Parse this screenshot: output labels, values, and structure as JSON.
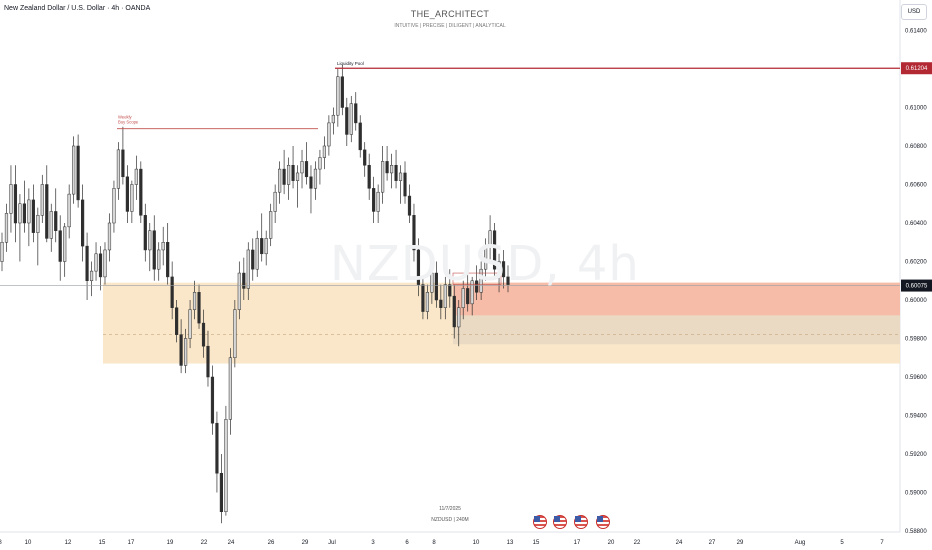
{
  "header": {
    "title": "New Zealand Dollar / U.S. Dollar · 4h · OANDA",
    "brand_name": "THE_ARCHITECT",
    "brand_tagline": "INTUITIVE | PRECISE | DILIGENT | ANALYTICAL",
    "currency": "USD"
  },
  "watermark": "NZDUSD, 4h",
  "footer": {
    "date": "11/7/2025",
    "symbol_interval": "NZDUSD | 240M",
    "event_icons": [
      "us-flag-icon",
      "us-flag-icon",
      "us-flag-icon",
      "us-flag-icon"
    ]
  },
  "chart_data": {
    "type": "candlestick",
    "symbol": "NZDUSD",
    "interval": "4h",
    "ylim": [
      0.588,
      0.614
    ],
    "y_ticks": [
      "0.61400",
      "0.61200",
      "0.61000",
      "0.60800",
      "0.60600",
      "0.60400",
      "0.60200",
      "0.60000",
      "0.59800",
      "0.59600",
      "0.59400",
      "0.59200",
      "0.59000",
      "0.58800"
    ],
    "x_ticks": [
      "8",
      "10",
      "12",
      "15",
      "17",
      "19",
      "22",
      "24",
      "26",
      "29",
      "Jul",
      "3",
      "6",
      "8",
      "10",
      "13",
      "15",
      "17",
      "20",
      "22",
      "24",
      "27",
      "29",
      "Aug",
      "5",
      "7"
    ],
    "price_labels": [
      {
        "value": 0.61204,
        "text": "0.61204",
        "color": "#b22833"
      },
      {
        "value": 0.60075,
        "text": "0.60075",
        "color": "#131722"
      }
    ],
    "annotations": [
      {
        "text": "Liquidity Pool",
        "price": 0.61204
      },
      {
        "text": "Weekly Buy Scope",
        "price": 0.6089
      }
    ],
    "zones": [
      {
        "name": "demand-zone",
        "top": 0.6009,
        "bottom": 0.5967,
        "color": "#f9e4c3"
      },
      {
        "name": "supply-zone",
        "top": 0.6009,
        "bottom": 0.5992,
        "color": "#f5b7a3"
      },
      {
        "name": "inner-zone",
        "top": 0.5992,
        "bottom": 0.5977,
        "color": "#e8d8c2"
      }
    ],
    "candles": [
      [
        0.602,
        0.6035,
        0.6015,
        0.603
      ],
      [
        0.603,
        0.605,
        0.6025,
        0.6045
      ],
      [
        0.6045,
        0.607,
        0.6035,
        0.606
      ],
      [
        0.606,
        0.607,
        0.603,
        0.604
      ],
      [
        0.604,
        0.6055,
        0.602,
        0.605
      ],
      [
        0.605,
        0.6062,
        0.6035,
        0.604
      ],
      [
        0.604,
        0.6058,
        0.6028,
        0.6052
      ],
      [
        0.6052,
        0.606,
        0.603,
        0.6035
      ],
      [
        0.6035,
        0.6048,
        0.6018,
        0.6044
      ],
      [
        0.6044,
        0.6065,
        0.604,
        0.606
      ],
      [
        0.606,
        0.607,
        0.603,
        0.6032
      ],
      [
        0.6032,
        0.605,
        0.6025,
        0.6046
      ],
      [
        0.6046,
        0.6058,
        0.603,
        0.6036
      ],
      [
        0.6036,
        0.6044,
        0.601,
        0.602
      ],
      [
        0.602,
        0.604,
        0.6012,
        0.6038
      ],
      [
        0.6038,
        0.606,
        0.6032,
        0.6055
      ],
      [
        0.6055,
        0.6085,
        0.605,
        0.608
      ],
      [
        0.608,
        0.6086,
        0.6048,
        0.6052
      ],
      [
        0.6052,
        0.606,
        0.602,
        0.6028
      ],
      [
        0.6028,
        0.6035,
        0.6,
        0.601
      ],
      [
        0.601,
        0.602,
        0.6002,
        0.6015
      ],
      [
        0.6015,
        0.603,
        0.601,
        0.6024
      ],
      [
        0.6024,
        0.6028,
        0.6005,
        0.6012
      ],
      [
        0.6012,
        0.603,
        0.6008,
        0.6026
      ],
      [
        0.6026,
        0.6045,
        0.602,
        0.604
      ],
      [
        0.604,
        0.6062,
        0.6035,
        0.6058
      ],
      [
        0.6058,
        0.6082,
        0.6052,
        0.6078
      ],
      [
        0.6078,
        0.609,
        0.606,
        0.6064
      ],
      [
        0.6064,
        0.607,
        0.604,
        0.6046
      ],
      [
        0.6046,
        0.6062,
        0.604,
        0.606
      ],
      [
        0.606,
        0.6075,
        0.6052,
        0.6068
      ],
      [
        0.6068,
        0.6072,
        0.604,
        0.6044
      ],
      [
        0.6044,
        0.605,
        0.602,
        0.6026
      ],
      [
        0.6026,
        0.604,
        0.6015,
        0.6036
      ],
      [
        0.6036,
        0.6044,
        0.601,
        0.6016
      ],
      [
        0.6016,
        0.603,
        0.601,
        0.6026
      ],
      [
        0.6026,
        0.6038,
        0.6018,
        0.603
      ],
      [
        0.603,
        0.604,
        0.6008,
        0.6012
      ],
      [
        0.6012,
        0.602,
        0.599,
        0.5996
      ],
      [
        0.5996,
        0.6,
        0.5978,
        0.5982
      ],
      [
        0.5982,
        0.599,
        0.5962,
        0.5966
      ],
      [
        0.5966,
        0.5985,
        0.5962,
        0.598
      ],
      [
        0.598,
        0.6,
        0.5975,
        0.5995
      ],
      [
        0.5995,
        0.601,
        0.599,
        0.6004
      ],
      [
        0.6004,
        0.6008,
        0.5985,
        0.5988
      ],
      [
        0.5988,
        0.5995,
        0.597,
        0.5976
      ],
      [
        0.5976,
        0.5984,
        0.5955,
        0.596
      ],
      [
        0.596,
        0.5966,
        0.593,
        0.5936
      ],
      [
        0.5936,
        0.5942,
        0.59,
        0.591
      ],
      [
        0.591,
        0.592,
        0.5884,
        0.589
      ],
      [
        0.589,
        0.5945,
        0.5888,
        0.5938
      ],
      [
        0.5938,
        0.5975,
        0.593,
        0.597
      ],
      [
        0.597,
        0.6,
        0.5965,
        0.5995
      ],
      [
        0.5995,
        0.602,
        0.599,
        0.6014
      ],
      [
        0.6014,
        0.6022,
        0.6,
        0.6006
      ],
      [
        0.6006,
        0.603,
        0.6,
        0.6026
      ],
      [
        0.6026,
        0.6032,
        0.601,
        0.6016
      ],
      [
        0.6016,
        0.6036,
        0.6012,
        0.6032
      ],
      [
        0.6032,
        0.6045,
        0.602,
        0.6024
      ],
      [
        0.6024,
        0.6036,
        0.6018,
        0.6032
      ],
      [
        0.6032,
        0.605,
        0.6028,
        0.6046
      ],
      [
        0.6046,
        0.606,
        0.604,
        0.6056
      ],
      [
        0.6056,
        0.6072,
        0.605,
        0.6068
      ],
      [
        0.6068,
        0.6078,
        0.6055,
        0.606
      ],
      [
        0.606,
        0.6074,
        0.6052,
        0.607
      ],
      [
        0.607,
        0.608,
        0.6058,
        0.6062
      ],
      [
        0.6062,
        0.607,
        0.6048,
        0.6066
      ],
      [
        0.6066,
        0.6078,
        0.6058,
        0.6072
      ],
      [
        0.6072,
        0.6082,
        0.606,
        0.6064
      ],
      [
        0.6064,
        0.607,
        0.6045,
        0.6058
      ],
      [
        0.6058,
        0.6072,
        0.6052,
        0.6068
      ],
      [
        0.6068,
        0.6078,
        0.606,
        0.6074
      ],
      [
        0.6074,
        0.6085,
        0.6068,
        0.608
      ],
      [
        0.608,
        0.6096,
        0.6075,
        0.6092
      ],
      [
        0.6092,
        0.61,
        0.6086,
        0.6096
      ],
      [
        0.6096,
        0.612,
        0.609,
        0.6116
      ],
      [
        0.6116,
        0.6122,
        0.6096,
        0.61
      ],
      [
        0.61,
        0.6105,
        0.608,
        0.6086
      ],
      [
        0.6086,
        0.6106,
        0.6082,
        0.6102
      ],
      [
        0.6102,
        0.6108,
        0.6088,
        0.6092
      ],
      [
        0.6092,
        0.6096,
        0.6074,
        0.6078
      ],
      [
        0.6078,
        0.6082,
        0.6064,
        0.607
      ],
      [
        0.607,
        0.6076,
        0.6052,
        0.6058
      ],
      [
        0.6058,
        0.6064,
        0.604,
        0.6046
      ],
      [
        0.6046,
        0.606,
        0.604,
        0.6056
      ],
      [
        0.6056,
        0.608,
        0.605,
        0.6072
      ],
      [
        0.6072,
        0.608,
        0.6062,
        0.6066
      ],
      [
        0.6066,
        0.6076,
        0.6058,
        0.607
      ],
      [
        0.607,
        0.6078,
        0.6058,
        0.6062
      ],
      [
        0.6062,
        0.607,
        0.605,
        0.6066
      ],
      [
        0.6066,
        0.6072,
        0.605,
        0.6054
      ],
      [
        0.6054,
        0.606,
        0.604,
        0.6044
      ],
      [
        0.6044,
        0.605,
        0.602,
        0.6026
      ],
      [
        0.6026,
        0.6032,
        0.6002,
        0.6008
      ],
      [
        0.6008,
        0.6012,
        0.599,
        0.5994
      ],
      [
        0.5994,
        0.6008,
        0.599,
        0.6004
      ],
      [
        0.6004,
        0.6018,
        0.5998,
        0.6014
      ],
      [
        0.6014,
        0.602,
        0.5996,
        0.6
      ],
      [
        0.6,
        0.6008,
        0.599,
        0.5996
      ],
      [
        0.5996,
        0.6012,
        0.599,
        0.6008
      ],
      [
        0.6008,
        0.6016,
        0.5996,
        0.6002
      ],
      [
        0.6002,
        0.6008,
        0.598,
        0.5986
      ],
      [
        0.5986,
        0.6,
        0.5976,
        0.5996
      ],
      [
        0.5996,
        0.601,
        0.599,
        0.6006
      ],
      [
        0.6006,
        0.6014,
        0.5994,
        0.5998
      ],
      [
        0.5998,
        0.6012,
        0.5992,
        0.601
      ],
      [
        0.601,
        0.6018,
        0.6,
        0.6004
      ],
      [
        0.6004,
        0.602,
        0.6,
        0.6016
      ],
      [
        0.6016,
        0.6032,
        0.601,
        0.6028
      ],
      [
        0.6028,
        0.6044,
        0.602,
        0.6036
      ],
      [
        0.6036,
        0.604,
        0.6012,
        0.6016
      ],
      [
        0.6016,
        0.6024,
        0.6004,
        0.602
      ],
      [
        0.602,
        0.6026,
        0.6006,
        0.6012
      ],
      [
        0.6012,
        0.6018,
        0.6004,
        0.6008
      ]
    ]
  }
}
